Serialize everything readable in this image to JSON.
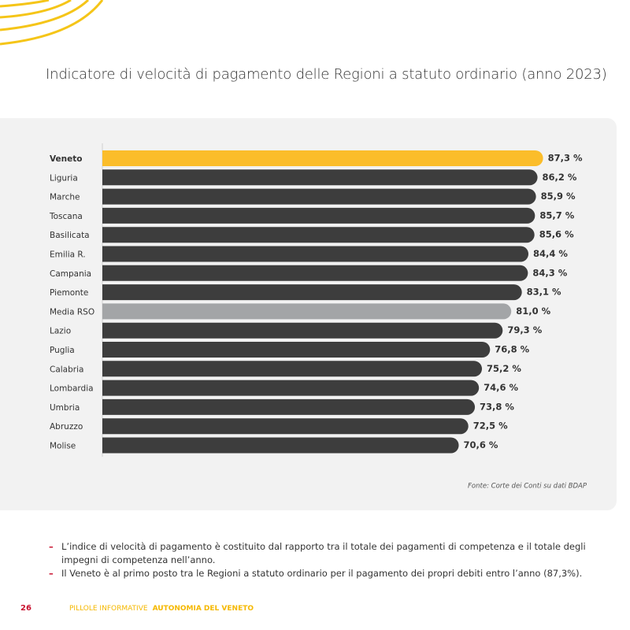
{
  "title": "Indicatore di velocità di pagamento delle Regioni a statuto ordinario (anno 2023)",
  "chart_data": {
    "type": "bar",
    "orientation": "horizontal",
    "categories": [
      "Veneto",
      "Liguria",
      "Marche",
      "Toscana",
      "Basilicata",
      "Emilia R.",
      "Campania",
      "Piemonte",
      "Media RSO",
      "Lazio",
      "Puglia",
      "Calabria",
      "Lombardia",
      "Umbria",
      "Abruzzo",
      "Molise"
    ],
    "values": [
      87.3,
      86.2,
      85.9,
      85.7,
      85.6,
      84.4,
      84.3,
      83.1,
      81.0,
      79.3,
      76.8,
      75.2,
      74.6,
      73.8,
      72.5,
      70.6
    ],
    "value_labels": [
      "87,3 %",
      "86,2 %",
      "85,9 %",
      "85,7 %",
      "85,6 %",
      "84,4 %",
      "84,3 %",
      "83,1 %",
      "81,0 %",
      "79,3 %",
      "76,8 %",
      "75,2 %",
      "74,6 %",
      "73,8 %",
      "72,5 %",
      "70,6 %"
    ],
    "colors": [
      "#fbbd2a",
      "#3d3d3d",
      "#3d3d3d",
      "#3d3d3d",
      "#3d3d3d",
      "#3d3d3d",
      "#3d3d3d",
      "#3d3d3d",
      "#a3a5a7",
      "#3d3d3d",
      "#3d3d3d",
      "#3d3d3d",
      "#3d3d3d",
      "#3d3d3d",
      "#3d3d3d",
      "#3d3d3d"
    ]
  },
  "source": "Fonte: Corte dei Conti su dati BDAP",
  "notes": [
    "L’indice di velocità di pagamento è costituito dal rapporto tra il totale dei pagamenti di competenza e il totale degli impegni di competenza nell’anno.",
    "Il Veneto è al primo posto tra le Regioni a statuto ordinario per il pagamento dei propri debiti entro l’anno (87,3%)."
  ],
  "footer": {
    "page": "26",
    "section": "PILLOLE INFORMATIVE",
    "subtitle": "AUTONOMIA DEL VENETO"
  }
}
